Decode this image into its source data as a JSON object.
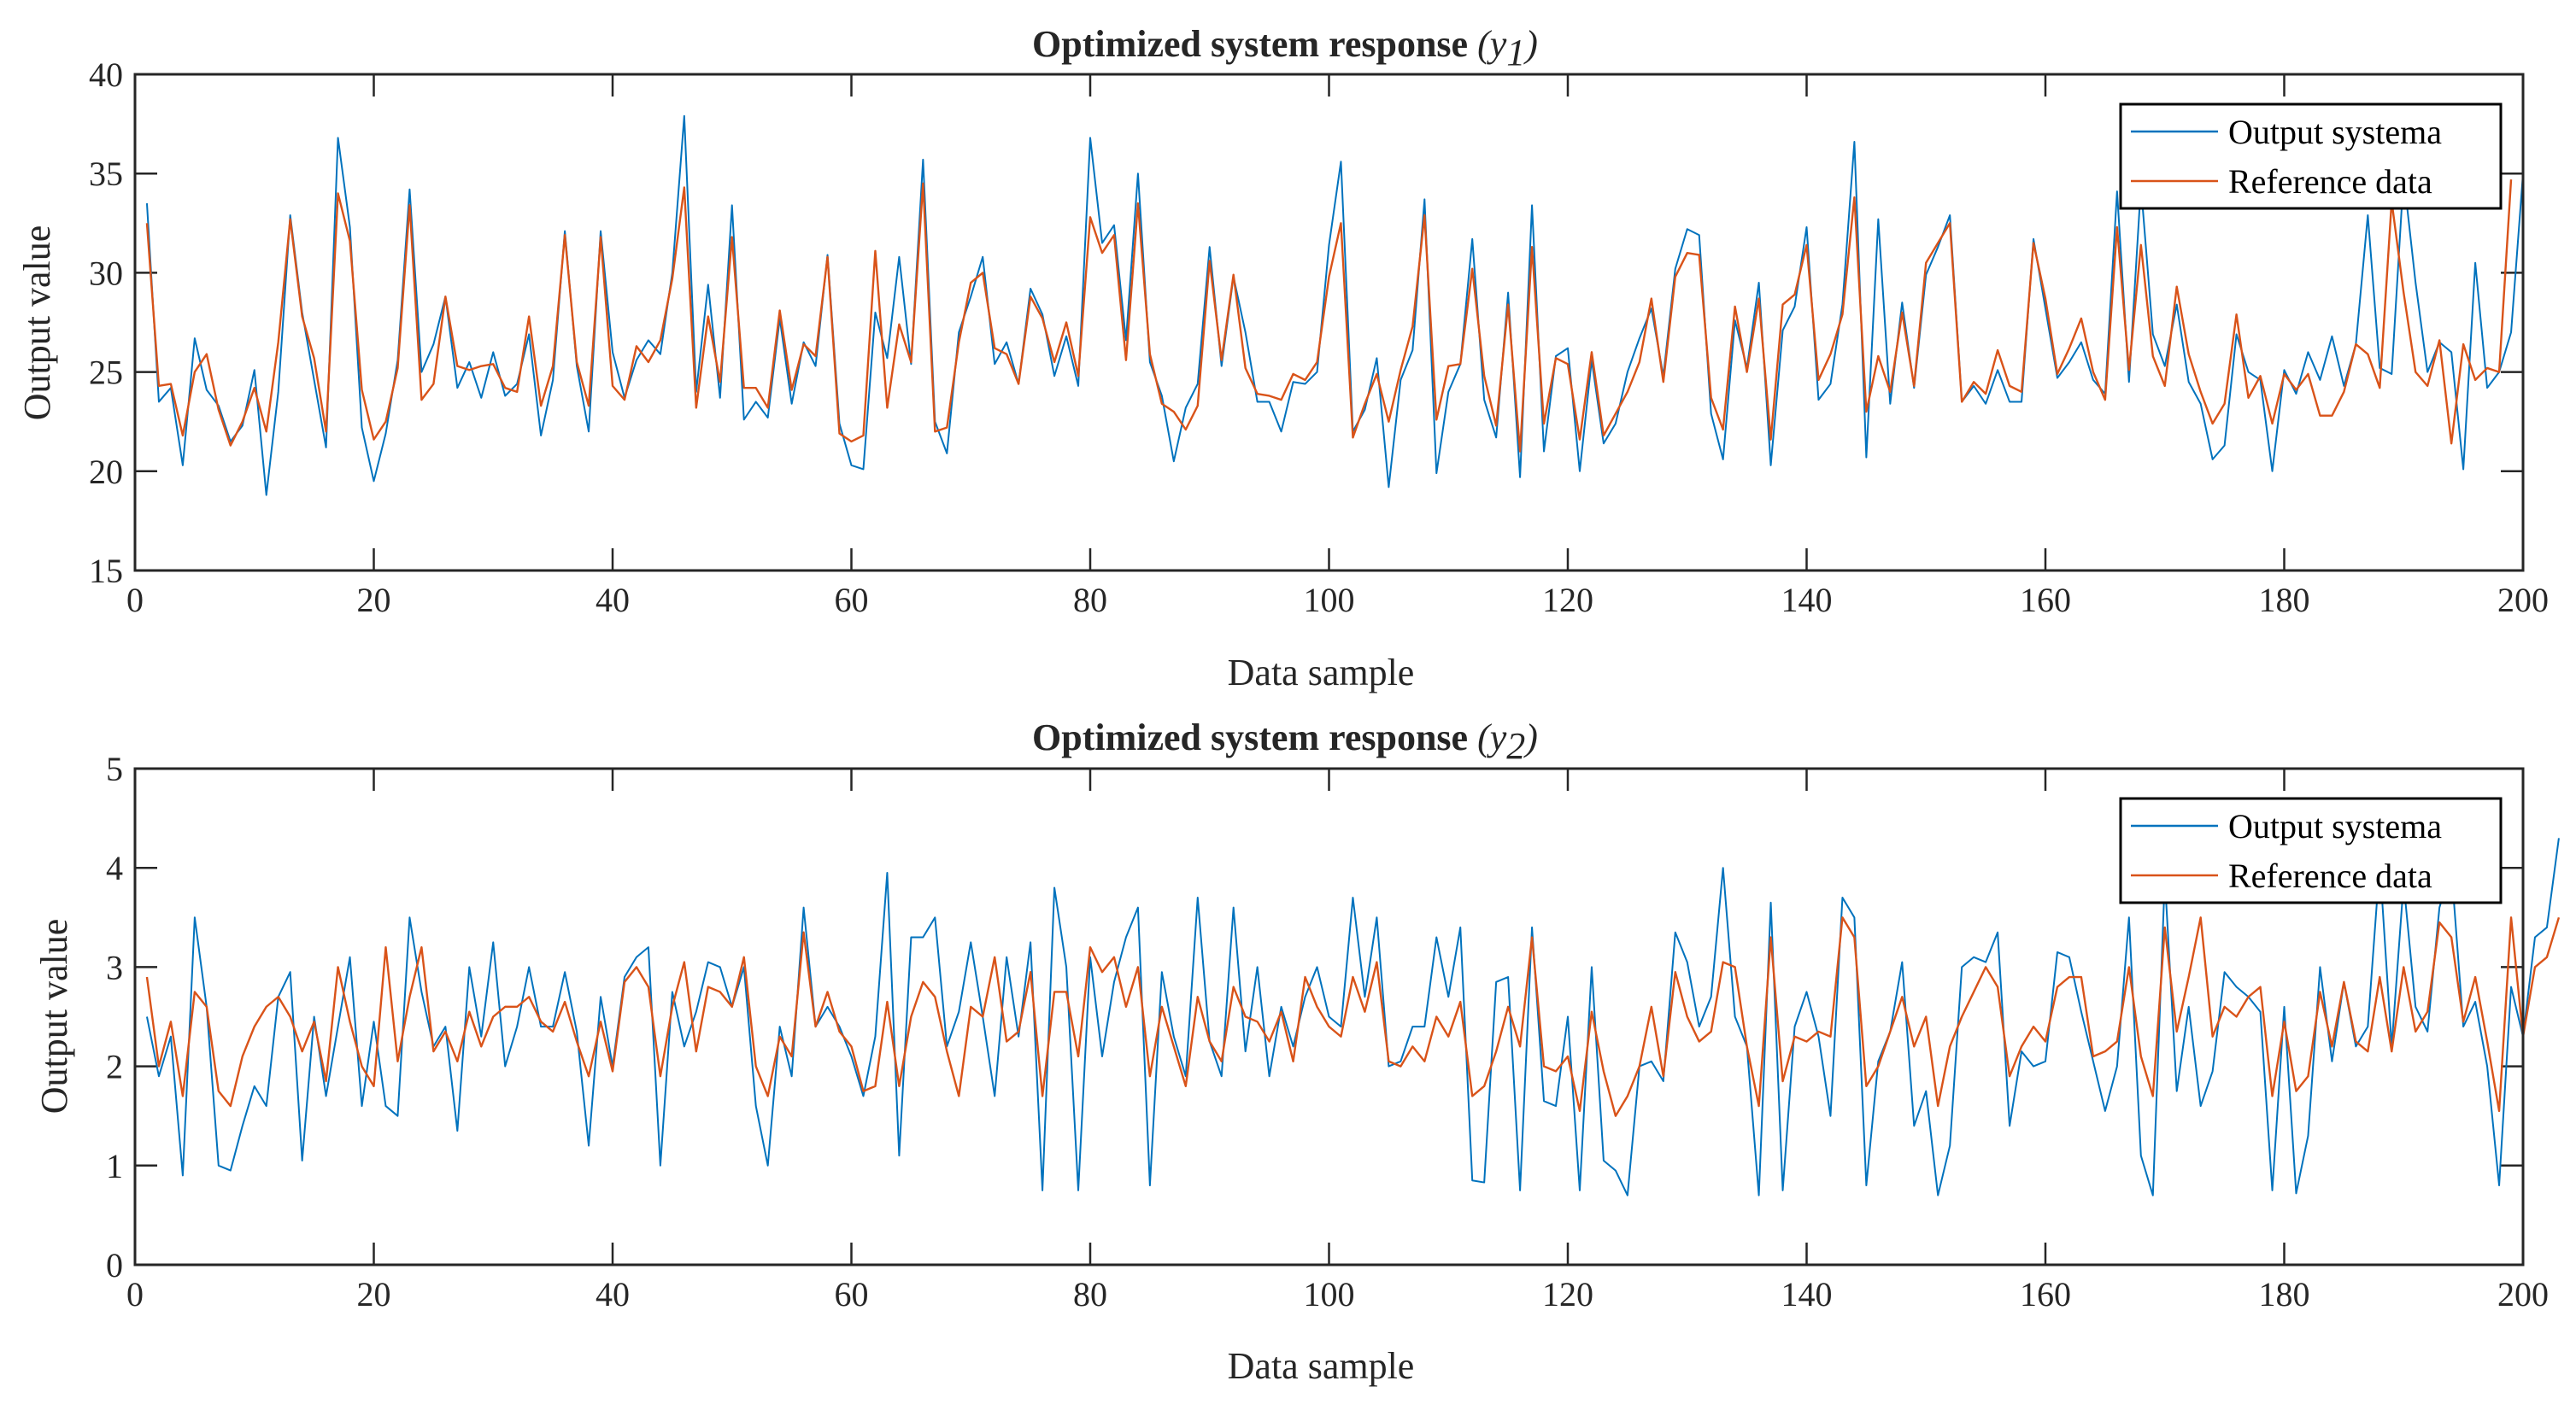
{
  "chart_data": [
    {
      "type": "line",
      "title": "Optimized system response",
      "title_symbol": "(y",
      "title_subscript": "1",
      "title_close": ")",
      "xlabel": "Data sample",
      "ylabel": "Output value",
      "xlim": [
        0,
        200
      ],
      "ylim": [
        15,
        40
      ],
      "xticks": [
        0,
        20,
        40,
        60,
        80,
        100,
        120,
        140,
        160,
        180,
        200
      ],
      "yticks": [
        15,
        20,
        25,
        30,
        35,
        40
      ],
      "grid": false,
      "legend_position": "top-right",
      "series": [
        {
          "name": "Output systema",
          "color": "#0072BD",
          "values": [
            33.5,
            23.5,
            24.2,
            20.3,
            26.7,
            24.1,
            23.3,
            21.5,
            22.3,
            25.1,
            18.8,
            24.0,
            32.9,
            28.0,
            24.6,
            21.2,
            36.8,
            32.3,
            22.2,
            19.5,
            21.9,
            25.6,
            34.2,
            25.0,
            26.4,
            28.8,
            24.2,
            25.5,
            23.7,
            26.0,
            23.8,
            24.4,
            26.9,
            21.8,
            24.6,
            32.1,
            25.3,
            22.0,
            32.1,
            26.0,
            23.7,
            25.6,
            26.6,
            25.9,
            30.0,
            37.9,
            24.0,
            29.4,
            23.7,
            33.4,
            22.6,
            23.5,
            22.7,
            27.7,
            23.4,
            26.5,
            25.3,
            30.9,
            22.4,
            20.3,
            20.1,
            28.0,
            25.7,
            30.8,
            25.4,
            35.7,
            22.5,
            20.9,
            27.0,
            28.8,
            30.8,
            25.4,
            26.5,
            24.4,
            29.2,
            27.9,
            24.8,
            26.8,
            24.3,
            36.8,
            31.5,
            32.4,
            26.6,
            35.0,
            25.5,
            23.8,
            20.5,
            23.2,
            24.4,
            31.3,
            25.3,
            29.8,
            27.0,
            23.5,
            23.5,
            22.0,
            24.5,
            24.4,
            25.0,
            31.4,
            35.6,
            22.0,
            23.1,
            25.7,
            19.2,
            24.6,
            26.1,
            33.7,
            19.9,
            24.0,
            25.4,
            31.7,
            23.6,
            21.7,
            29.0,
            19.7,
            33.4,
            21.0,
            25.8,
            26.2,
            20.0,
            25.6,
            21.4,
            22.4,
            25.0,
            26.7,
            28.2,
            24.8,
            30.2,
            32.2,
            31.9,
            22.9,
            20.6,
            27.6,
            25.2,
            29.5,
            20.3,
            27.1,
            28.3,
            32.3,
            23.6,
            24.4,
            28.4,
            36.6,
            20.7,
            32.7,
            23.4,
            28.5,
            24.2,
            29.9,
            31.3,
            32.9,
            23.5,
            24.3,
            23.4,
            25.1,
            23.5,
            23.5,
            31.7,
            28.2,
            24.7,
            25.5,
            26.5,
            24.6,
            23.9,
            34.1,
            24.5,
            34.4,
            26.9,
            25.3,
            28.4,
            24.5,
            23.4,
            20.6,
            21.3,
            26.9,
            25.0,
            24.6,
            20.0,
            25.1,
            23.9,
            26.0,
            24.6,
            26.8,
            24.3,
            26.4,
            32.9,
            25.2,
            24.9,
            34.9,
            29.5,
            25.0,
            26.5,
            26.0,
            20.1,
            30.5,
            24.2,
            25.0,
            27.0,
            35.0
          ]
        },
        {
          "name": "Reference data",
          "color": "#D95319",
          "values": [
            32.5,
            24.3,
            24.4,
            21.8,
            25.0,
            25.9,
            23.1,
            21.3,
            22.5,
            24.2,
            22.0,
            26.5,
            32.7,
            27.8,
            25.7,
            22.0,
            34.0,
            31.6,
            24.1,
            21.6,
            22.5,
            25.2,
            33.4,
            23.6,
            24.4,
            28.8,
            25.3,
            25.1,
            25.3,
            25.4,
            24.2,
            24.0,
            27.8,
            23.3,
            25.3,
            31.9,
            25.5,
            23.3,
            31.8,
            24.3,
            23.6,
            26.3,
            25.5,
            26.6,
            29.7,
            34.3,
            23.2,
            27.8,
            24.5,
            31.8,
            24.2,
            24.2,
            23.2,
            28.1,
            24.1,
            26.4,
            25.8,
            30.8,
            21.9,
            21.5,
            21.8,
            31.1,
            23.2,
            27.4,
            25.5,
            34.5,
            22.0,
            22.2,
            26.5,
            29.5,
            30.0,
            26.2,
            25.9,
            24.4,
            28.8,
            27.7,
            25.5,
            27.5,
            24.8,
            32.8,
            31.0,
            31.9,
            25.6,
            33.5,
            25.9,
            23.4,
            23.0,
            22.1,
            23.3,
            30.6,
            25.6,
            29.9,
            25.2,
            23.9,
            23.8,
            23.6,
            24.9,
            24.6,
            25.5,
            29.8,
            32.5,
            21.7,
            23.4,
            24.9,
            22.5,
            25.1,
            27.3,
            32.9,
            22.6,
            25.3,
            25.4,
            30.2,
            24.8,
            22.3,
            28.4,
            21.0,
            31.3,
            22.4,
            25.7,
            25.4,
            21.6,
            26.0,
            21.8,
            22.9,
            24.0,
            25.5,
            28.7,
            24.5,
            29.8,
            31.0,
            30.9,
            23.7,
            22.1,
            28.3,
            25.0,
            28.7,
            21.6,
            28.4,
            28.9,
            31.4,
            24.6,
            25.9,
            27.9,
            33.8,
            23.0,
            25.8,
            24.0,
            28.0,
            24.3,
            30.5,
            31.5,
            32.5,
            23.5,
            24.5,
            23.9,
            26.1,
            24.3,
            24.0,
            31.5,
            28.7,
            24.9,
            26.2,
            27.7,
            25.0,
            23.6,
            32.3,
            25.1,
            31.4,
            25.8,
            24.3,
            29.3,
            25.9,
            24.0,
            22.4,
            23.4,
            27.9,
            23.7,
            24.8,
            22.4,
            24.9,
            24.1,
            24.9,
            22.8,
            22.8,
            24.0,
            26.4,
            25.9,
            24.2,
            33.6,
            29.0,
            25.0,
            24.3,
            26.6,
            21.4,
            26.4,
            24.6,
            25.2,
            25.0,
            34.7
          ]
        }
      ]
    },
    {
      "type": "line",
      "title": "Optimized system response",
      "title_symbol": "(y",
      "title_subscript": "2",
      "title_close": ")",
      "xlabel": "Data sample",
      "ylabel": "Output value",
      "xlim": [
        0,
        200
      ],
      "ylim": [
        0,
        5
      ],
      "xticks": [
        0,
        20,
        40,
        60,
        80,
        100,
        120,
        140,
        160,
        180,
        200
      ],
      "yticks": [
        0,
        1,
        2,
        3,
        4,
        5
      ],
      "grid": false,
      "legend_position": "top-right",
      "series": [
        {
          "name": "Output systema",
          "color": "#0072BD",
          "values": [
            2.5,
            1.9,
            2.3,
            0.9,
            3.5,
            2.6,
            1.0,
            0.95,
            1.4,
            1.8,
            1.6,
            2.7,
            2.95,
            1.05,
            2.5,
            1.7,
            2.4,
            3.1,
            1.6,
            2.45,
            1.6,
            1.5,
            3.5,
            2.75,
            2.2,
            2.4,
            1.35,
            3.0,
            2.3,
            3.25,
            2.0,
            2.4,
            3.0,
            2.4,
            2.4,
            2.95,
            2.35,
            1.2,
            2.7,
            2.0,
            2.9,
            3.1,
            3.2,
            1.0,
            2.75,
            2.2,
            2.55,
            3.05,
            3.0,
            2.6,
            3.0,
            1.6,
            1.0,
            2.4,
            1.9,
            3.6,
            2.4,
            2.6,
            2.4,
            2.1,
            1.7,
            2.3,
            3.95,
            1.1,
            3.3,
            3.3,
            3.5,
            2.2,
            2.55,
            3.25,
            2.5,
            1.7,
            3.1,
            2.3,
            3.25,
            0.75,
            3.8,
            3.0,
            0.75,
            3.1,
            2.1,
            2.85,
            3.3,
            3.6,
            0.8,
            2.95,
            2.3,
            1.9,
            3.7,
            2.25,
            1.9,
            3.6,
            2.15,
            3.0,
            1.9,
            2.6,
            2.2,
            2.7,
            3.0,
            2.5,
            2.4,
            3.7,
            2.7,
            3.5,
            2.0,
            2.05,
            2.4,
            2.4,
            3.3,
            2.7,
            3.4,
            0.85,
            0.83,
            2.85,
            2.9,
            0.75,
            3.4,
            1.65,
            1.6,
            2.5,
            0.75,
            3.0,
            1.05,
            0.95,
            0.7,
            2.0,
            2.05,
            1.85,
            3.35,
            3.05,
            2.4,
            2.7,
            4.0,
            2.5,
            2.2,
            0.7,
            3.65,
            0.75,
            2.4,
            2.75,
            2.3,
            1.5,
            3.7,
            3.5,
            0.8,
            2.05,
            2.35,
            3.05,
            1.4,
            1.75,
            0.7,
            1.2,
            3.0,
            3.1,
            3.05,
            3.35,
            1.4,
            2.15,
            2.0,
            2.05,
            3.15,
            3.1,
            2.55,
            2.05,
            1.55,
            2.0,
            3.5,
            1.1,
            0.7,
            3.9,
            1.75,
            2.6,
            1.6,
            1.95,
            2.95,
            2.8,
            2.7,
            2.55,
            0.75,
            2.6,
            0.72,
            1.3,
            3.0,
            2.05,
            2.85,
            2.2,
            2.4,
            4.05,
            2.2,
            3.85,
            2.6,
            2.35,
            3.6,
            4.0,
            2.4,
            2.65,
            2.0,
            0.8,
            2.8,
            2.3,
            3.3,
            3.4,
            4.3
          ]
        },
        {
          "name": "Reference data",
          "color": "#D95319",
          "values": [
            2.9,
            2.0,
            2.45,
            1.7,
            2.75,
            2.6,
            1.75,
            1.6,
            2.1,
            2.4,
            2.6,
            2.7,
            2.5,
            2.15,
            2.45,
            1.85,
            3.0,
            2.45,
            2.0,
            1.8,
            3.2,
            2.05,
            2.7,
            3.2,
            2.15,
            2.35,
            2.05,
            2.55,
            2.2,
            2.5,
            2.6,
            2.6,
            2.7,
            2.45,
            2.35,
            2.65,
            2.25,
            1.9,
            2.45,
            1.95,
            2.85,
            3.0,
            2.8,
            1.9,
            2.6,
            3.05,
            2.15,
            2.8,
            2.75,
            2.6,
            3.1,
            2.0,
            1.7,
            2.3,
            2.1,
            3.35,
            2.4,
            2.75,
            2.35,
            2.2,
            1.75,
            1.8,
            2.65,
            1.8,
            2.5,
            2.85,
            2.7,
            2.15,
            1.7,
            2.6,
            2.5,
            3.1,
            2.25,
            2.35,
            2.95,
            1.7,
            2.75,
            2.75,
            2.1,
            3.2,
            2.95,
            3.1,
            2.6,
            3.0,
            1.9,
            2.6,
            2.2,
            1.8,
            2.7,
            2.25,
            2.05,
            2.8,
            2.5,
            2.45,
            2.25,
            2.55,
            2.05,
            2.9,
            2.6,
            2.4,
            2.3,
            2.9,
            2.55,
            3.05,
            2.05,
            2.0,
            2.2,
            2.05,
            2.5,
            2.3,
            2.65,
            1.7,
            1.8,
            2.15,
            2.6,
            2.2,
            3.3,
            2.0,
            1.95,
            2.1,
            1.55,
            2.55,
            1.95,
            1.5,
            1.7,
            2.0,
            2.6,
            1.9,
            2.95,
            2.5,
            2.25,
            2.35,
            3.05,
            3.0,
            2.2,
            1.6,
            3.3,
            1.85,
            2.3,
            2.25,
            2.35,
            2.3,
            3.5,
            3.3,
            1.8,
            2.0,
            2.35,
            2.7,
            2.2,
            2.5,
            1.6,
            2.2,
            2.5,
            2.75,
            3.0,
            2.8,
            1.9,
            2.2,
            2.4,
            2.25,
            2.8,
            2.9,
            2.9,
            2.1,
            2.15,
            2.25,
            3.0,
            2.1,
            1.7,
            3.4,
            2.35,
            2.9,
            3.5,
            2.3,
            2.6,
            2.5,
            2.7,
            2.8,
            1.7,
            2.45,
            1.75,
            1.9,
            2.75,
            2.2,
            2.85,
            2.25,
            2.15,
            2.9,
            2.15,
            3.0,
            2.35,
            2.55,
            3.45,
            3.3,
            2.45,
            2.9,
            2.25,
            1.55,
            3.5,
            2.3,
            3.0,
            3.1,
            3.5
          ]
        }
      ]
    }
  ]
}
